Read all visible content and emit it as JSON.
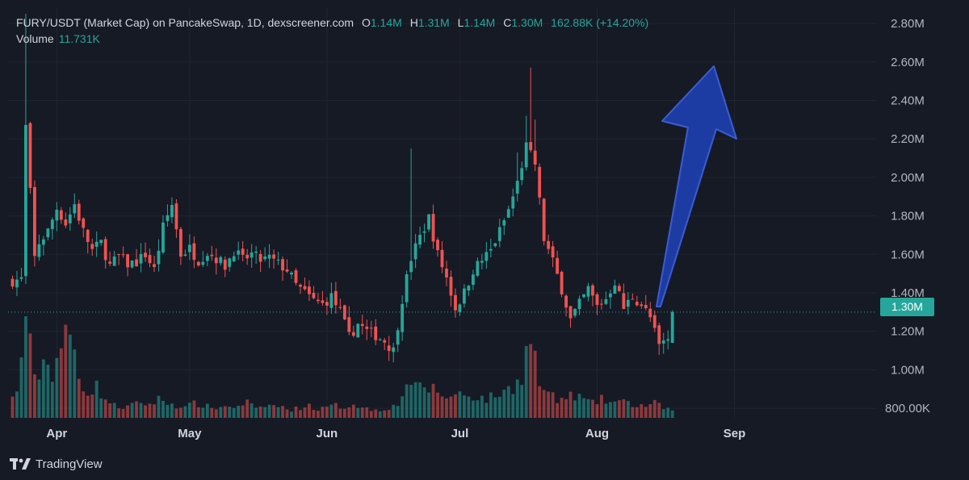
{
  "header": {
    "pair": "FURY/USDT (Market Cap) on PancakeSwap, 1D, dexscreener.com",
    "o_label": "O",
    "o_value": "1.14M",
    "h_label": "H",
    "h_value": "1.31M",
    "l_label": "L",
    "l_value": "1.14M",
    "c_label": "C",
    "c_value": "1.30M",
    "change": "162.88K (+14.20%)",
    "volume_label": "Volume",
    "volume_value": "11.731K"
  },
  "price_tag": "1.30M",
  "brand": "TradingView",
  "colors": {
    "background": "#161a25",
    "up": "#26a69a",
    "down": "#ef5350",
    "arrow": "#1e3fae",
    "text": "#d1d4dc"
  },
  "chart_data": {
    "type": "candlestick",
    "y_ticks": [
      {
        "label": "2.80M",
        "value": 2.8
      },
      {
        "label": "2.60M",
        "value": 2.6
      },
      {
        "label": "2.40M",
        "value": 2.4
      },
      {
        "label": "2.20M",
        "value": 2.2
      },
      {
        "label": "2.00M",
        "value": 2.0
      },
      {
        "label": "1.80M",
        "value": 1.8
      },
      {
        "label": "1.60M",
        "value": 1.6
      },
      {
        "label": "1.40M",
        "value": 1.4
      },
      {
        "label": "1.20M",
        "value": 1.2
      },
      {
        "label": "1.00M",
        "value": 1.0
      },
      {
        "label": "800.00K",
        "value": 0.8
      }
    ],
    "x_ticks": [
      {
        "label": "Apr",
        "day": 1
      },
      {
        "label": "May",
        "day": 31
      },
      {
        "label": "Jun",
        "day": 62
      },
      {
        "label": "Jul",
        "day": 92
      },
      {
        "label": "Aug",
        "day": 123
      },
      {
        "label": "Sep",
        "day": 154
      }
    ],
    "ylim": [
      0.75,
      2.88
    ],
    "xlim": [
      -10,
      186
    ],
    "last_close": 1.3,
    "annotation": "upward blue arrow drawn from the last candle toward ~2.6M in late August",
    "close_path": [
      [
        -10,
        1.46
      ],
      [
        -7,
        1.47
      ],
      [
        -6,
        2.26
      ],
      [
        -4,
        1.58
      ],
      [
        -3,
        1.66
      ],
      [
        -1,
        1.72
      ],
      [
        1,
        1.84
      ],
      [
        3,
        1.76
      ],
      [
        5,
        1.86
      ],
      [
        7,
        1.72
      ],
      [
        9,
        1.62
      ],
      [
        11,
        1.66
      ],
      [
        13,
        1.54
      ],
      [
        15,
        1.59
      ],
      [
        17,
        1.55
      ],
      [
        19,
        1.56
      ],
      [
        21,
        1.6
      ],
      [
        23,
        1.52
      ],
      [
        25,
        1.74
      ],
      [
        27,
        1.86
      ],
      [
        29,
        1.6
      ],
      [
        31,
        1.63
      ],
      [
        33,
        1.57
      ],
      [
        35,
        1.61
      ],
      [
        37,
        1.58
      ],
      [
        39,
        1.54
      ],
      [
        41,
        1.62
      ],
      [
        43,
        1.57
      ],
      [
        45,
        1.6
      ],
      [
        47,
        1.57
      ],
      [
        49,
        1.58
      ],
      [
        51,
        1.55
      ],
      [
        53,
        1.52
      ],
      [
        55,
        1.44
      ],
      [
        57,
        1.4
      ],
      [
        59,
        1.36
      ],
      [
        61,
        1.34
      ],
      [
        63,
        1.38
      ],
      [
        65,
        1.3
      ],
      [
        67,
        1.17
      ],
      [
        69,
        1.24
      ],
      [
        71,
        1.2
      ],
      [
        73,
        1.18
      ],
      [
        75,
        1.15
      ],
      [
        77,
        1.1
      ],
      [
        79,
        1.37
      ],
      [
        81,
        1.58
      ],
      [
        83,
        1.69
      ],
      [
        85,
        1.79
      ],
      [
        87,
        1.6
      ],
      [
        89,
        1.48
      ],
      [
        91,
        1.32
      ],
      [
        93,
        1.4
      ],
      [
        95,
        1.52
      ],
      [
        97,
        1.57
      ],
      [
        99,
        1.62
      ],
      [
        101,
        1.72
      ],
      [
        103,
        1.83
      ],
      [
        105,
        1.97
      ],
      [
        107,
        2.16
      ],
      [
        109,
        2.07
      ],
      [
        111,
        1.68
      ],
      [
        113,
        1.56
      ],
      [
        115,
        1.42
      ],
      [
        117,
        1.26
      ],
      [
        119,
        1.34
      ],
      [
        121,
        1.42
      ],
      [
        123,
        1.33
      ],
      [
        125,
        1.37
      ],
      [
        127,
        1.46
      ],
      [
        129,
        1.32
      ],
      [
        131,
        1.38
      ],
      [
        133,
        1.34
      ],
      [
        135,
        1.27
      ],
      [
        137,
        1.12
      ],
      [
        139,
        1.16
      ],
      [
        140,
        1.3
      ]
    ],
    "volume_profile": [
      [
        -10,
        0.12
      ],
      [
        -8,
        0.25
      ],
      [
        -6,
        1.0
      ],
      [
        -4,
        0.35
      ],
      [
        -2,
        0.55
      ],
      [
        0,
        0.45
      ],
      [
        2,
        0.7
      ],
      [
        4,
        0.8
      ],
      [
        6,
        0.4
      ],
      [
        8,
        0.25
      ],
      [
        10,
        0.3
      ],
      [
        12,
        0.18
      ],
      [
        14,
        0.12
      ],
      [
        16,
        0.1
      ],
      [
        18,
        0.12
      ],
      [
        20,
        0.15
      ],
      [
        22,
        0.13
      ],
      [
        24,
        0.18
      ],
      [
        26,
        0.15
      ],
      [
        28,
        0.12
      ],
      [
        30,
        0.1
      ],
      [
        32,
        0.14
      ],
      [
        34,
        0.12
      ],
      [
        36,
        0.1
      ],
      [
        38,
        0.1
      ],
      [
        40,
        0.12
      ],
      [
        42,
        0.1
      ],
      [
        44,
        0.16
      ],
      [
        46,
        0.08
      ],
      [
        48,
        0.12
      ],
      [
        50,
        0.12
      ],
      [
        52,
        0.1
      ],
      [
        54,
        0.08
      ],
      [
        56,
        0.1
      ],
      [
        58,
        0.12
      ],
      [
        60,
        0.08
      ],
      [
        62,
        0.1
      ],
      [
        64,
        0.12
      ],
      [
        66,
        0.1
      ],
      [
        68,
        0.14
      ],
      [
        70,
        0.1
      ],
      [
        72,
        0.08
      ],
      [
        74,
        0.08
      ],
      [
        76,
        0.1
      ],
      [
        78,
        0.12
      ],
      [
        80,
        0.36
      ],
      [
        82,
        0.28
      ],
      [
        84,
        0.3
      ],
      [
        86,
        0.28
      ],
      [
        88,
        0.22
      ],
      [
        90,
        0.2
      ],
      [
        92,
        0.24
      ],
      [
        94,
        0.22
      ],
      [
        96,
        0.2
      ],
      [
        98,
        0.18
      ],
      [
        100,
        0.22
      ],
      [
        102,
        0.25
      ],
      [
        104,
        0.3
      ],
      [
        106,
        0.42
      ],
      [
        108,
        0.82
      ],
      [
        110,
        0.32
      ],
      [
        112,
        0.24
      ],
      [
        114,
        0.16
      ],
      [
        116,
        0.2
      ],
      [
        118,
        0.22
      ],
      [
        120,
        0.18
      ],
      [
        122,
        0.14
      ],
      [
        124,
        0.18
      ],
      [
        126,
        0.15
      ],
      [
        128,
        0.16
      ],
      [
        130,
        0.14
      ],
      [
        132,
        0.12
      ],
      [
        134,
        0.12
      ],
      [
        136,
        0.14
      ],
      [
        138,
        0.1
      ],
      [
        140,
        0.08
      ]
    ]
  }
}
